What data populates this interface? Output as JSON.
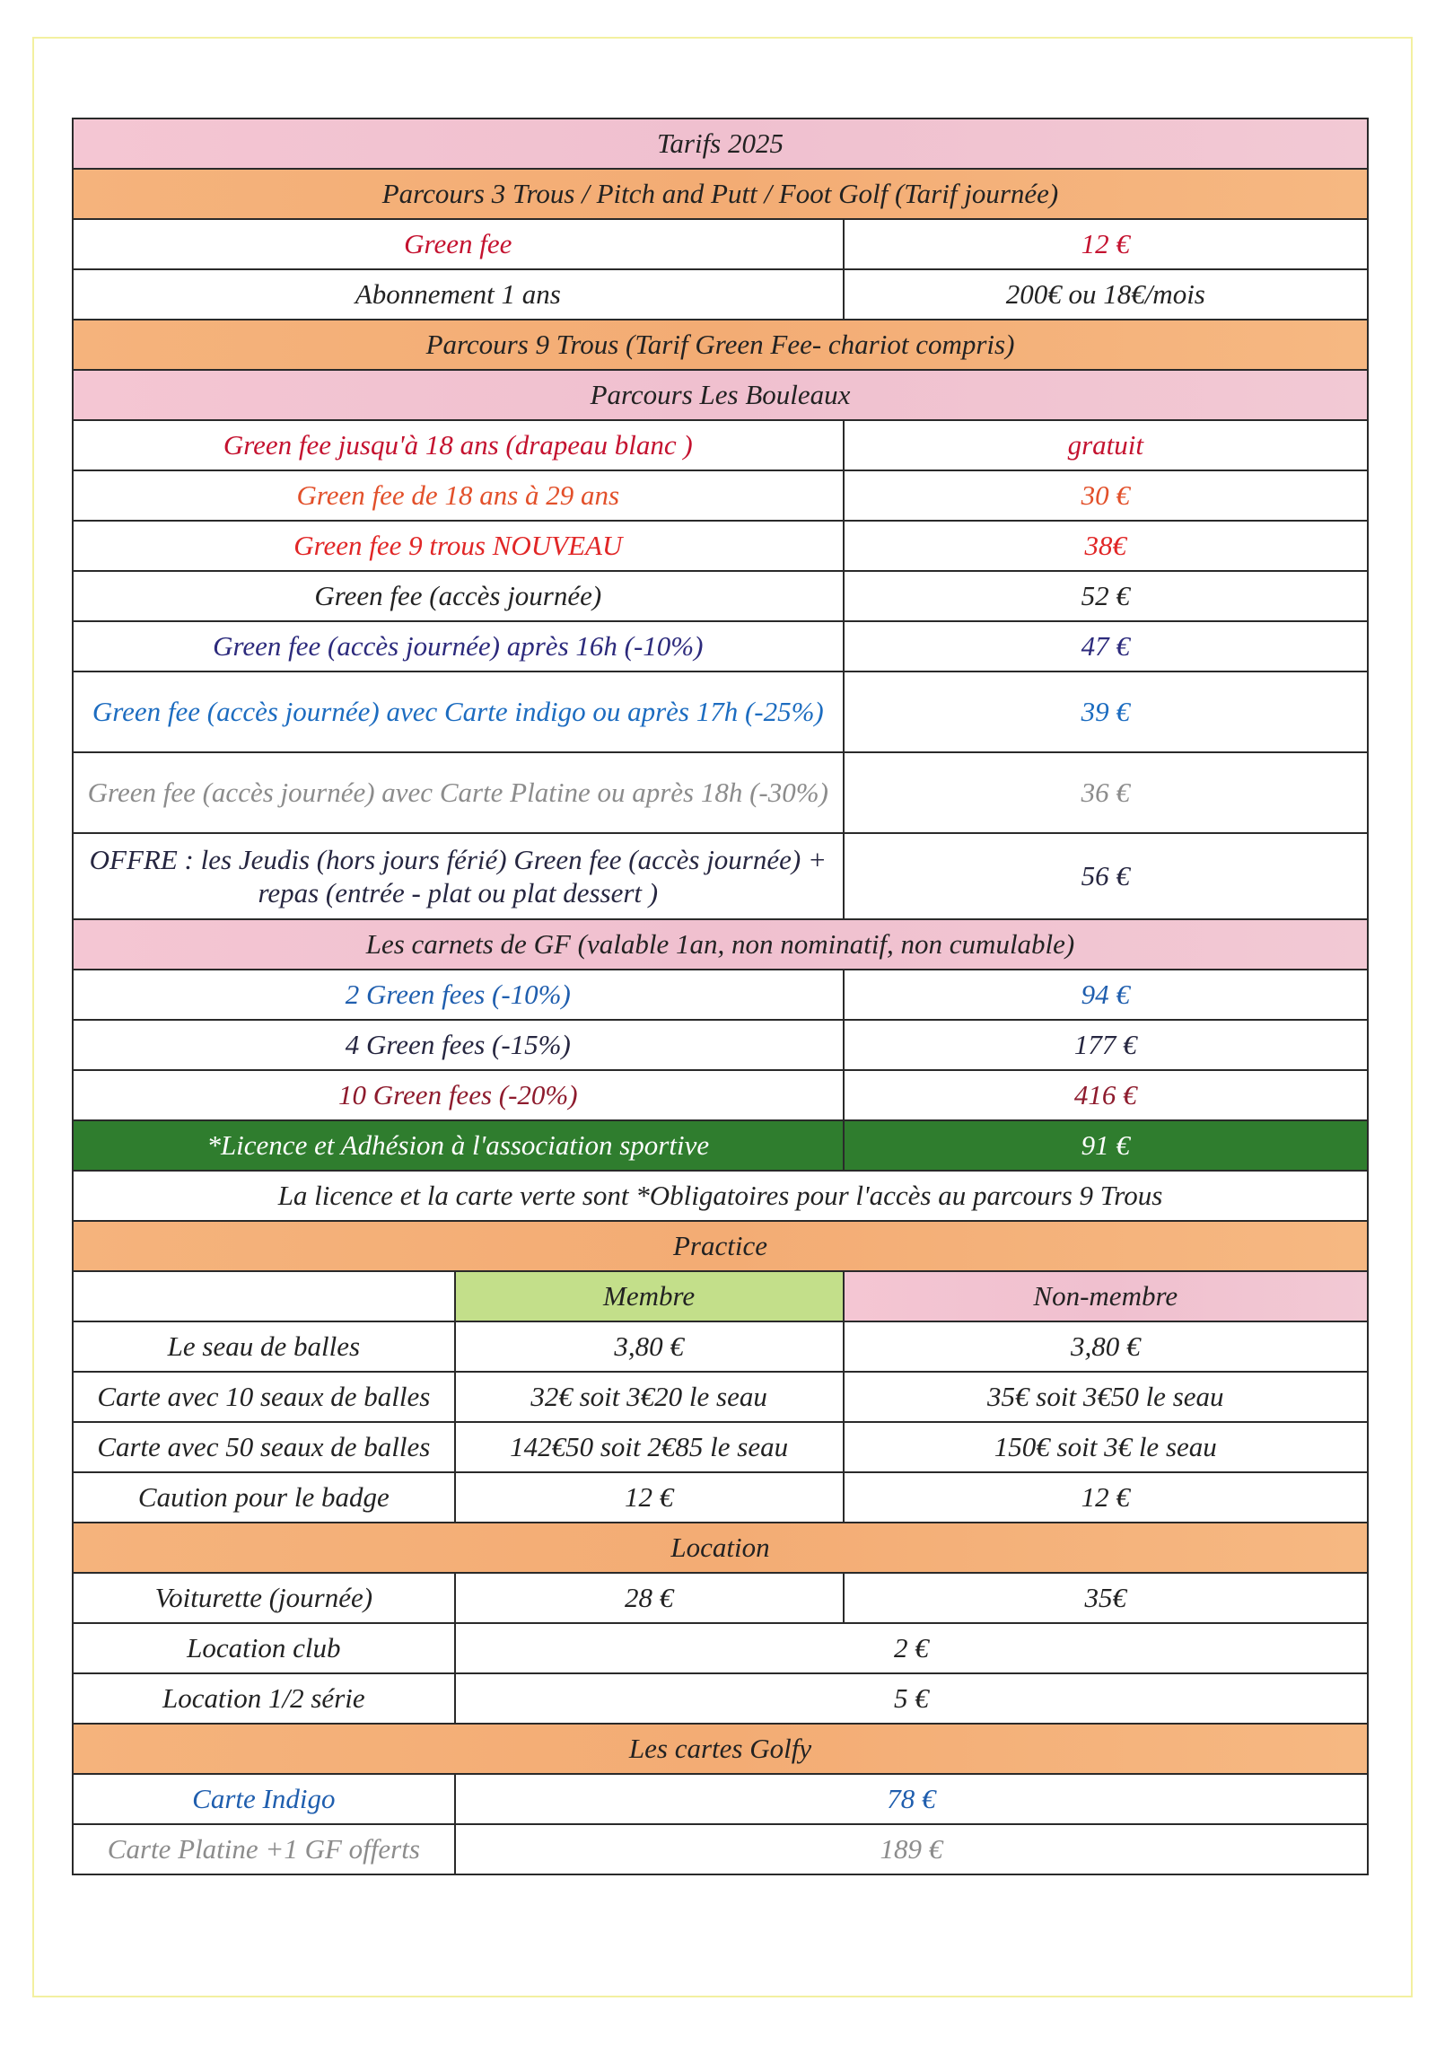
{
  "title": "Tarifs 2025",
  "colors": {
    "pink": "#f2c4d0",
    "orange": "#f5b27a",
    "green": "#2f7d2e",
    "light_green": "#c3df8a",
    "border": "#2a2a2a"
  },
  "section_3trous": {
    "header": "Parcours 3 Trous / Pitch and Putt / Foot Golf (Tarif journée)",
    "rows": [
      {
        "label": "Green fee",
        "price": "12 €"
      },
      {
        "label": "Abonnement 1 ans",
        "price": "200€ ou 18€/mois"
      }
    ]
  },
  "section_9trous": {
    "header": "Parcours 9 Trous (Tarif Green Fee- chariot compris)",
    "subheader": "Parcours Les Bouleaux",
    "rows": [
      {
        "label": "Green fee jusqu'à 18 ans (drapeau blanc )",
        "price": "gratuit"
      },
      {
        "label": "Green fee de 18 ans à 29 ans",
        "price": "30 €"
      },
      {
        "label": "Green fee 9 trous NOUVEAU",
        "price": "38€"
      },
      {
        "label": "Green fee (accès journée)",
        "price": "52 €"
      },
      {
        "label": "Green fee (accès journée) après 16h (-10%)",
        "price": "47 €"
      },
      {
        "label": "Green fee (accès journée) avec Carte indigo ou après 17h (-25%)",
        "price": "39 €"
      },
      {
        "label": "Green fee (accès journée) avec Carte Platine ou après 18h (-30%)",
        "price": "36 €"
      },
      {
        "label": "OFFRE : les Jeudis (hors jours férié) Green fee (accès journée) + repas  (entrée - plat ou plat dessert )",
        "price": "56 €"
      }
    ]
  },
  "carnets": {
    "header": "Les carnets de GF (valable 1an, non nominatif, non cumulable)",
    "rows": [
      {
        "label": "2 Green fees (-10%)",
        "price": "94 €"
      },
      {
        "label": "4 Green fees (-15%)",
        "price": "177 €"
      },
      {
        "label": "10 Green fees (-20%)",
        "price": "416 €"
      }
    ]
  },
  "licence": {
    "label": "*Licence et Adhésion à l'association sportive",
    "price": "91 €",
    "note": "La licence et la carte verte sont *Obligatoires pour l'accès au parcours 9 Trous"
  },
  "practice": {
    "header": "Practice",
    "col_member": "Membre",
    "col_non_member": "Non-membre",
    "rows": [
      {
        "label": "Le seau de balles",
        "member": "3,80 €",
        "non_member": "3,80 €"
      },
      {
        "label": "Carte avec 10 seaux de balles",
        "member": "32€ soit 3€20 le seau",
        "non_member": "35€ soit 3€50 le seau"
      },
      {
        "label": "Carte avec 50 seaux de balles",
        "member": "142€50 soit 2€85 le seau",
        "non_member": "150€ soit 3€ le seau"
      },
      {
        "label": "Caution pour le badge",
        "member": "12 €",
        "non_member": "12 €"
      }
    ]
  },
  "location": {
    "header": "Location",
    "voiturette": {
      "label": "Voiturette (journée)",
      "member": "28 €",
      "non_member": "35€"
    },
    "rows": [
      {
        "label": "Location club",
        "price": "2 €"
      },
      {
        "label": "Location 1/2 série",
        "price": "5 €"
      }
    ]
  },
  "golfy": {
    "header": "Les cartes Golfy",
    "rows": [
      {
        "label": "Carte Indigo",
        "price": "78 €"
      },
      {
        "label": "Carte Platine +1 GF offerts",
        "price": "189 €"
      }
    ]
  }
}
